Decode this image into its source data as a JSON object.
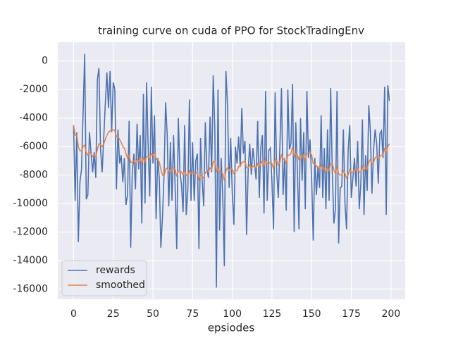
{
  "chart_data": {
    "type": "line",
    "title": "training curve on cuda of PPO for StockTradingEnv",
    "x_label": "epsiodes",
    "x": [
      0,
      1,
      2,
      3,
      4,
      5,
      6,
      7,
      8,
      9,
      10,
      11,
      12,
      13,
      14,
      15,
      16,
      17,
      18,
      19,
      20,
      21,
      22,
      23,
      24,
      25,
      26,
      27,
      28,
      29,
      30,
      31,
      32,
      33,
      34,
      35,
      36,
      37,
      38,
      39,
      40,
      41,
      42,
      43,
      44,
      45,
      46,
      47,
      48,
      49,
      50,
      51,
      52,
      53,
      54,
      55,
      56,
      57,
      58,
      59,
      60,
      61,
      62,
      63,
      64,
      65,
      66,
      67,
      68,
      69,
      70,
      71,
      72,
      73,
      74,
      75,
      76,
      77,
      78,
      79,
      80,
      81,
      82,
      83,
      84,
      85,
      86,
      87,
      88,
      89,
      90,
      91,
      92,
      93,
      94,
      95,
      96,
      97,
      98,
      99,
      100,
      101,
      102,
      103,
      104,
      105,
      106,
      107,
      108,
      109,
      110,
      111,
      112,
      113,
      114,
      115,
      116,
      117,
      118,
      119,
      120,
      121,
      122,
      123,
      124,
      125,
      126,
      127,
      128,
      129,
      130,
      131,
      132,
      133,
      134,
      135,
      136,
      137,
      138,
      139,
      140,
      141,
      142,
      143,
      144,
      145,
      146,
      147,
      148,
      149,
      150,
      151,
      152,
      153,
      154,
      155,
      156,
      157,
      158,
      159,
      160,
      161,
      162,
      163,
      164,
      165,
      166,
      167,
      168,
      169,
      170,
      171,
      172,
      173,
      174,
      175,
      176,
      177,
      178,
      179,
      180,
      181,
      182,
      183,
      184,
      185,
      186,
      187,
      188,
      189,
      190,
      191,
      192,
      193,
      194,
      195,
      196,
      197,
      198,
      199
    ],
    "series": [
      {
        "name": "rewards",
        "color": "#4c72b0",
        "values": [
          -4500,
          -9800,
          -5000,
          -12700,
          -8500,
          -7600,
          -3600,
          500,
          -9700,
          -9400,
          -5000,
          -6400,
          -7800,
          -6400,
          -8200,
          -1300,
          -500,
          -6200,
          -7800,
          -5400,
          -3000,
          -800,
          -3300,
          -700,
          -5000,
          -1500,
          -2000,
          -9000,
          -4800,
          -7200,
          -6600,
          -8500,
          -6800,
          -10100,
          -9400,
          -4200,
          -13100,
          -7800,
          -6500,
          -9000,
          -4400,
          -7600,
          -5200,
          -11400,
          -2300,
          -10000,
          -1500,
          -6000,
          -9500,
          -1800,
          -7200,
          -3800,
          -11100,
          -6800,
          -8200,
          -13100,
          -11000,
          -8000,
          -2900,
          -5200,
          -10200,
          -5700,
          -9800,
          -5200,
          -8900,
          -13200,
          -4000,
          -7700,
          -8700,
          -10600,
          -4500,
          -10800,
          -9000,
          -2700,
          -9800,
          -5700,
          -9800,
          -7000,
          -6500,
          -13200,
          -5400,
          -8300,
          -10200,
          -4300,
          -7600,
          -8200,
          -3900,
          -7800,
          -1000,
          -4800,
          -15900,
          -2000,
          -11900,
          -6800,
          -9500,
          -14400,
          -700,
          -3100,
          -8900,
          -5400,
          -9300,
          -11500,
          -6000,
          -7200,
          -5300,
          -7400,
          -3300,
          -6500,
          -5600,
          -12200,
          -7700,
          -5800,
          -8000,
          -6100,
          -7200,
          -8300,
          -4200,
          -9600,
          -6000,
          -5200,
          -10700,
          -2100,
          -9800,
          -6300,
          -6100,
          -8500,
          -11800,
          -2200,
          -7800,
          -9600,
          -6000,
          -1900,
          -9400,
          -6800,
          -10500,
          -2000,
          -6200,
          -5800,
          -1600,
          -12000,
          -4300,
          -7600,
          -11800,
          -4000,
          -8400,
          -5000,
          -10400,
          -2100,
          -6800,
          -5500,
          -8200,
          -12600,
          -6800,
          -9400,
          -7400,
          -8900,
          -3800,
          -9600,
          -6100,
          -10400,
          -4800,
          -9800,
          -1900,
          -7700,
          -11400,
          -10400,
          -2100,
          -12800,
          -8900,
          -8800,
          -4800,
          -10000,
          -11800,
          -6300,
          -4500,
          -9600,
          -8200,
          -6800,
          -8800,
          -5600,
          -10400,
          -8600,
          -4100,
          -10800,
          -6600,
          -9100,
          -3100,
          -4900,
          -9300,
          -6300,
          -4800,
          -5800,
          -8600,
          -5100,
          -4900,
          -6800,
          -1800,
          -10800,
          -1700,
          -2800
        ]
      },
      {
        "name": "smoothed",
        "color": "#dd8452",
        "values": [
          -4500,
          -5200,
          -5200,
          -6000,
          -6300,
          -6300,
          -6000,
          -5900,
          -6400,
          -6600,
          -6400,
          -6500,
          -6700,
          -6600,
          -6700,
          -6200,
          -5800,
          -5900,
          -6000,
          -5800,
          -5500,
          -5200,
          -5000,
          -4900,
          -4900,
          -4800,
          -4900,
          -5300,
          -5300,
          -5500,
          -5700,
          -6000,
          -6100,
          -6500,
          -6800,
          -6600,
          -7100,
          -7100,
          -7000,
          -7200,
          -6900,
          -7000,
          -6800,
          -7200,
          -6800,
          -7100,
          -6700,
          -6700,
          -6900,
          -6500,
          -6600,
          -6400,
          -6900,
          -6900,
          -7100,
          -7600,
          -8000,
          -8100,
          -7600,
          -7500,
          -7800,
          -7600,
          -7800,
          -7500,
          -7600,
          -8100,
          -7700,
          -7700,
          -7800,
          -8000,
          -7700,
          -8000,
          -8100,
          -7700,
          -7900,
          -7800,
          -7900,
          -7900,
          -7800,
          -8300,
          -8000,
          -8100,
          -8200,
          -7800,
          -7800,
          -7800,
          -7500,
          -7600,
          -7100,
          -7000,
          -7800,
          -7400,
          -7800,
          -7800,
          -7900,
          -8400,
          -7700,
          -7500,
          -7700,
          -7500,
          -7600,
          -7900,
          -7700,
          -7700,
          -7400,
          -7400,
          -7100,
          -7100,
          -7000,
          -7500,
          -7500,
          -7300,
          -7500,
          -7400,
          -7400,
          -7500,
          -7200,
          -7400,
          -7200,
          -7000,
          -7400,
          -6900,
          -7200,
          -7200,
          -7100,
          -7200,
          -7600,
          -6900,
          -7000,
          -7300,
          -7100,
          -6600,
          -6900,
          -6900,
          -7200,
          -6600,
          -6600,
          -6500,
          -6000,
          -6700,
          -6500,
          -6600,
          -6900,
          -6600,
          -6800,
          -6600,
          -7000,
          -6500,
          -6500,
          -6400,
          -6600,
          -7200,
          -7200,
          -7400,
          -7400,
          -7600,
          -7300,
          -7600,
          -7500,
          -7800,
          -7500,
          -7700,
          -7200,
          -7200,
          -7600,
          -7900,
          -7400,
          -7900,
          -8000,
          -8000,
          -7700,
          -7900,
          -8200,
          -8000,
          -7600,
          -7800,
          -7800,
          -7600,
          -7700,
          -7500,
          -7800,
          -7800,
          -7400,
          -7700,
          -7500,
          -7600,
          -7100,
          -6900,
          -7200,
          -7100,
          -6800,
          -6700,
          -6900,
          -6700,
          -6600,
          -6600,
          -6100,
          -6500,
          -6000,
          -5800
        ]
      }
    ],
    "xlim": [
      -9.95,
      208.95
    ],
    "ylim": [
      -16720,
      1320
    ],
    "xticks": [
      0,
      25,
      50,
      75,
      100,
      125,
      150,
      175,
      200
    ],
    "yticks": [
      0,
      -2000,
      -4000,
      -6000,
      -8000,
      -10000,
      -12000,
      -14000,
      -16000
    ],
    "grid": true,
    "legend": "lower left"
  }
}
